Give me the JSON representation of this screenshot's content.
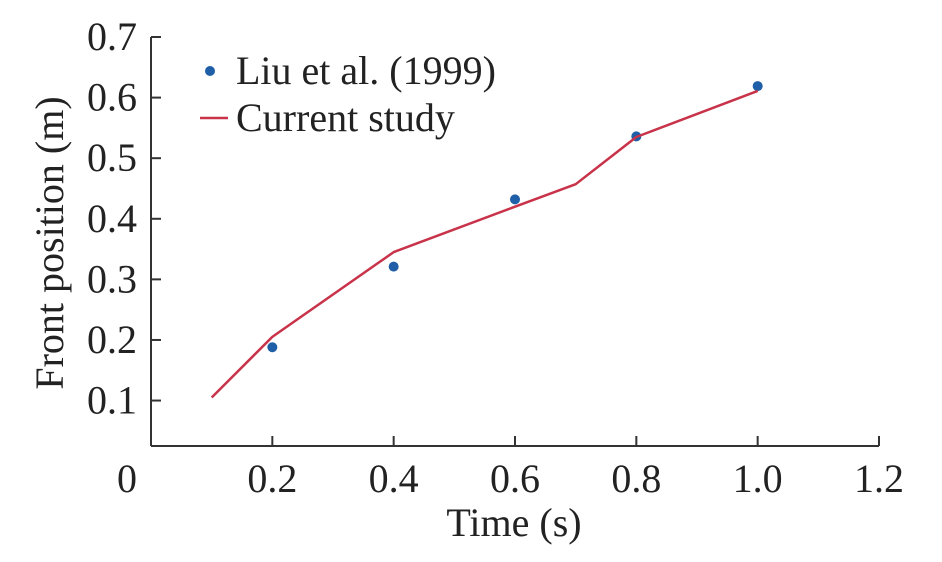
{
  "chart_data": {
    "type": "line",
    "title": "",
    "xlabel": "Time (s)",
    "ylabel": "Front position (m)",
    "xlim": [
      0,
      1.2
    ],
    "ylim": [
      0.025,
      0.7
    ],
    "x_ticks": [
      {
        "value": 0,
        "label": "0"
      },
      {
        "value": 0.2,
        "label": "0.2"
      },
      {
        "value": 0.4,
        "label": "0.4"
      },
      {
        "value": 0.6,
        "label": "0.6"
      },
      {
        "value": 0.8,
        "label": "0.8"
      },
      {
        "value": 1.0,
        "label": "1.0"
      },
      {
        "value": 1.2,
        "label": "1.2"
      }
    ],
    "y_ticks": [
      {
        "value": 0.1,
        "label": "0.1"
      },
      {
        "value": 0.2,
        "label": "0.2"
      },
      {
        "value": 0.3,
        "label": "0.3"
      },
      {
        "value": 0.4,
        "label": "0.4"
      },
      {
        "value": 0.5,
        "label": "0.5"
      },
      {
        "value": 0.6,
        "label": "0.6"
      },
      {
        "value": 0.7,
        "label": "0.7"
      }
    ],
    "grid": false,
    "legend_position": "top-left",
    "series": [
      {
        "name": "Liu et al. (1999)",
        "kind": "scatter",
        "color": "#1f5fa8",
        "points": [
          {
            "x": 0.2,
            "y": 0.188
          },
          {
            "x": 0.4,
            "y": 0.321
          },
          {
            "x": 0.6,
            "y": 0.432
          },
          {
            "x": 0.8,
            "y": 0.536
          },
          {
            "x": 1.0,
            "y": 0.619
          }
        ]
      },
      {
        "name": "Current study",
        "kind": "line",
        "color": "#c8334a",
        "points": [
          {
            "x": 0.1,
            "y": 0.105
          },
          {
            "x": 0.2,
            "y": 0.205
          },
          {
            "x": 0.4,
            "y": 0.345
          },
          {
            "x": 0.6,
            "y": 0.42
          },
          {
            "x": 0.7,
            "y": 0.457
          },
          {
            "x": 0.8,
            "y": 0.535
          },
          {
            "x": 1.0,
            "y": 0.611
          }
        ]
      }
    ]
  }
}
